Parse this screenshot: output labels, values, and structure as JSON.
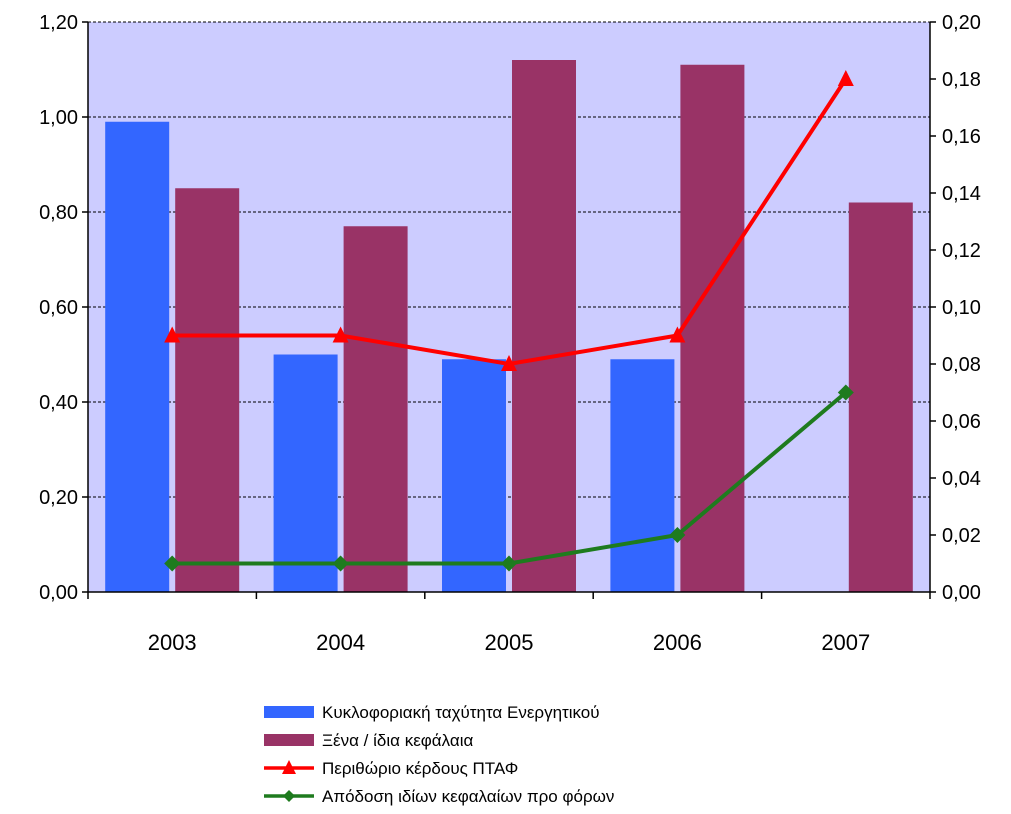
{
  "chart_data": {
    "type": "bar",
    "categories": [
      "2003",
      "2004",
      "2005",
      "2006",
      "2007"
    ],
    "series": [
      {
        "name": "Κυκλοφοριακή ταχύτητα Ενεργητικού",
        "kind": "bar",
        "axis": "left",
        "color": "#3366ff",
        "values": [
          0.99,
          0.5,
          0.49,
          0.49,
          null
        ]
      },
      {
        "name": "Ξένα / ίδια κεφάλαια",
        "kind": "bar",
        "axis": "left",
        "color": "#993366",
        "values": [
          0.85,
          0.77,
          1.12,
          1.11,
          0.82
        ]
      },
      {
        "name": "Περιθώριο κέρδους ΠΤΑΦ",
        "kind": "line",
        "marker": "triangle",
        "axis": "right",
        "color": "#ff0000",
        "values": [
          0.09,
          0.09,
          0.08,
          0.09,
          0.18
        ]
      },
      {
        "name": "Απόδοση ιδίων κεφαλαίων προ φόρων",
        "kind": "line",
        "marker": "diamond",
        "axis": "right",
        "color": "#1e7b1e",
        "values": [
          0.01,
          0.01,
          0.01,
          0.02,
          0.07
        ]
      }
    ],
    "y_left": {
      "ylim": [
        0,
        1.2
      ],
      "ticks": [
        "0,00",
        "0,20",
        "0,40",
        "0,60",
        "0,80",
        "1,00",
        "1,20"
      ]
    },
    "y_right": {
      "ylim": [
        0,
        0.2
      ],
      "ticks": [
        "0,00",
        "0,02",
        "0,04",
        "0,06",
        "0,08",
        "0,10",
        "0,12",
        "0,14",
        "0,16",
        "0,18",
        "0,20"
      ]
    },
    "plot_background": "#ccccff",
    "grid": "dashed horizontal at left-axis ticks",
    "legend_position": "bottom"
  }
}
